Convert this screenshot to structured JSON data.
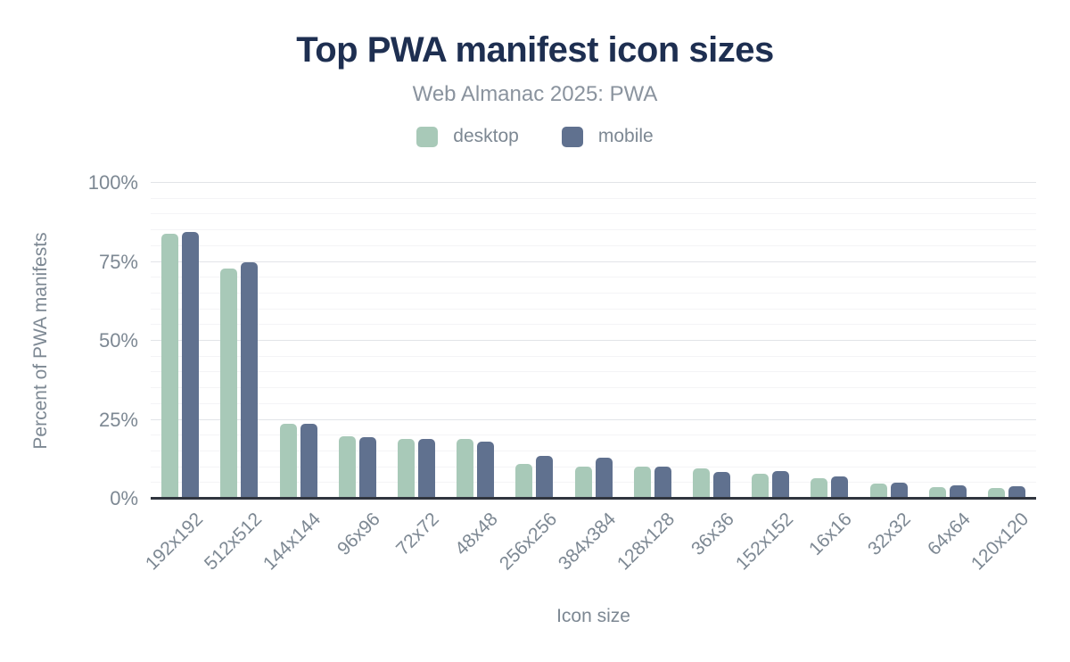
{
  "header": {
    "title": "Top PWA manifest icon sizes",
    "subtitle": "Web Almanac 2025: PWA"
  },
  "chart_data": {
    "type": "bar",
    "title": "Top PWA manifest icon sizes",
    "subtitle": "Web Almanac 2025: PWA",
    "xlabel": "Icon size",
    "ylabel": "Percent of PWA manifests",
    "ylim": [
      0,
      100
    ],
    "y_ticks": [
      {
        "value": 0,
        "label": "0%"
      },
      {
        "value": 25,
        "label": "25%"
      },
      {
        "value": 50,
        "label": "50%"
      },
      {
        "value": 75,
        "label": "75%"
      },
      {
        "value": 100,
        "label": "100%"
      }
    ],
    "grid": {
      "major_step": 25,
      "minor_step": 5,
      "enabled": true
    },
    "legend_position": "top",
    "categories": [
      "192x192",
      "512x512",
      "144x144",
      "96x96",
      "72x72",
      "48x48",
      "256x256",
      "384x384",
      "128x128",
      "36x36",
      "152x152",
      "16x16",
      "32x32",
      "64x64",
      "120x120"
    ],
    "series": [
      {
        "name": "desktop",
        "color": "#a8c9b8",
        "values": [
          84,
          73,
          23.8,
          19.9,
          18.9,
          18.9,
          10.9,
          10.2,
          10.2,
          9.7,
          7.9,
          6.5,
          4.7,
          3.7,
          3.4
        ]
      },
      {
        "name": "mobile",
        "color": "#60718f",
        "values": [
          84.5,
          74.8,
          23.8,
          19.4,
          18.8,
          18.2,
          13.7,
          13.0,
          10.1,
          8.6,
          8.8,
          7.1,
          5.2,
          4.2,
          4.0
        ]
      }
    ]
  },
  "colors": {
    "title": "#1e2f51",
    "subtitle": "#8a939e",
    "axis_text": "#7d8893",
    "axis_line": "#30353e",
    "grid_major": "#e2e4e8",
    "grid_minor": "#f4f4f6",
    "background": "#ffffff"
  }
}
